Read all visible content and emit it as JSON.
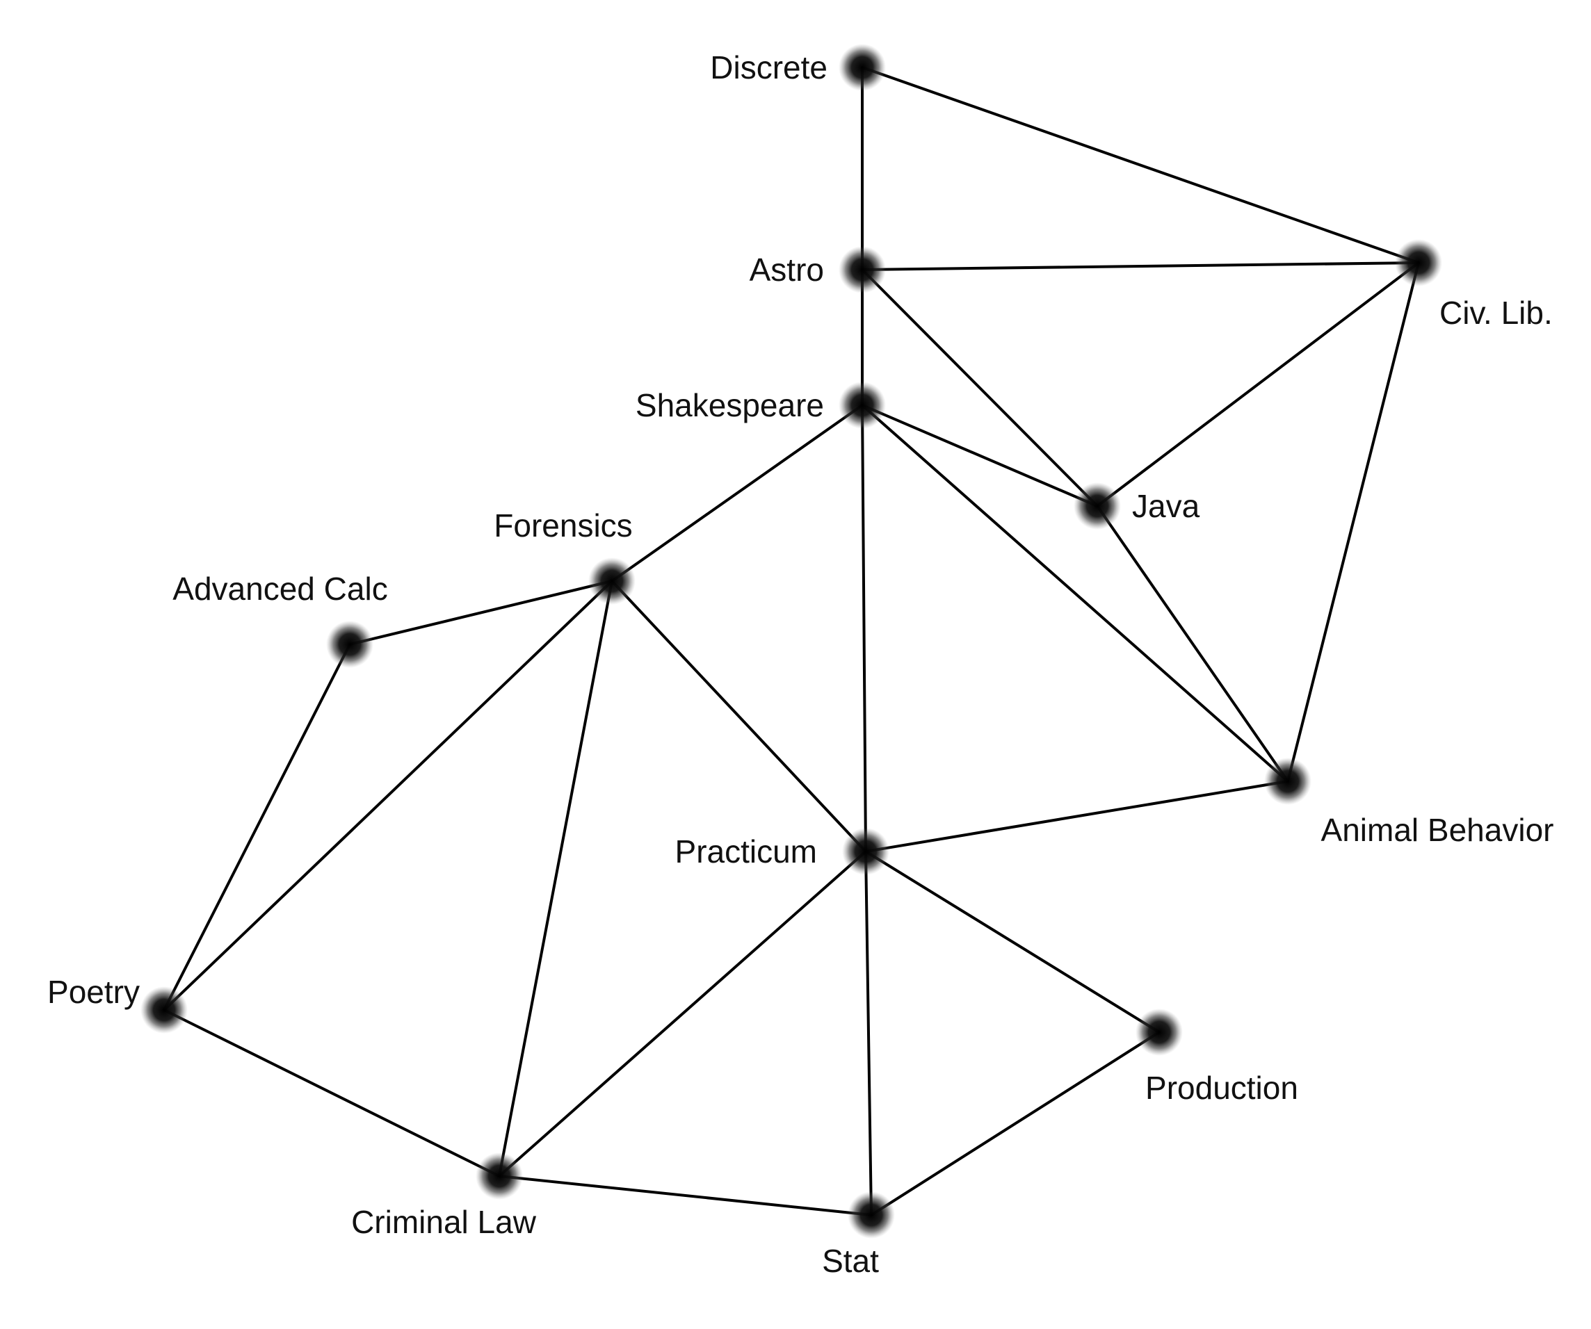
{
  "graph": {
    "node_color": "#1a1a1a",
    "edge_color": "#000000",
    "nodes": [
      {
        "id": "discrete",
        "label": "Discrete"
      },
      {
        "id": "astro",
        "label": "Astro"
      },
      {
        "id": "civlib",
        "label": "Civ. Lib."
      },
      {
        "id": "shakespeare",
        "label": "Shakespeare"
      },
      {
        "id": "java",
        "label": "Java"
      },
      {
        "id": "forensics",
        "label": "Forensics"
      },
      {
        "id": "advcalc",
        "label": "Advanced Calc"
      },
      {
        "id": "animal",
        "label": "Animal Behavior"
      },
      {
        "id": "practicum",
        "label": "Practicum"
      },
      {
        "id": "poetry",
        "label": "Poetry"
      },
      {
        "id": "production",
        "label": "Production"
      },
      {
        "id": "criminal",
        "label": "Criminal Law"
      },
      {
        "id": "stat",
        "label": "Stat"
      }
    ],
    "edges": [
      [
        "discrete",
        "astro"
      ],
      [
        "discrete",
        "civlib"
      ],
      [
        "astro",
        "civlib"
      ],
      [
        "astro",
        "shakespeare"
      ],
      [
        "astro",
        "java"
      ],
      [
        "civlib",
        "java"
      ],
      [
        "civlib",
        "animal"
      ],
      [
        "shakespeare",
        "java"
      ],
      [
        "shakespeare",
        "animal"
      ],
      [
        "shakespeare",
        "forensics"
      ],
      [
        "shakespeare",
        "practicum"
      ],
      [
        "java",
        "animal"
      ],
      [
        "forensics",
        "advcalc"
      ],
      [
        "forensics",
        "poetry"
      ],
      [
        "forensics",
        "criminal"
      ],
      [
        "forensics",
        "practicum"
      ],
      [
        "advcalc",
        "poetry"
      ],
      [
        "poetry",
        "criminal"
      ],
      [
        "practicum",
        "animal"
      ],
      [
        "practicum",
        "criminal"
      ],
      [
        "practicum",
        "stat"
      ],
      [
        "practicum",
        "production"
      ],
      [
        "criminal",
        "stat"
      ],
      [
        "stat",
        "production"
      ]
    ]
  }
}
